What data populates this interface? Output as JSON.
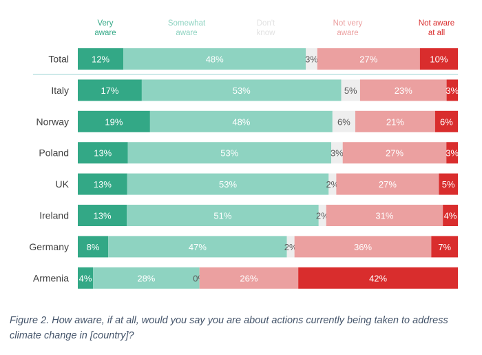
{
  "chart_data": {
    "type": "bar",
    "orientation": "horizontal",
    "stacked": true,
    "percent": true,
    "legend_position": "top",
    "categories": [
      "Total",
      "Italy",
      "Norway",
      "Poland",
      "UK",
      "Ireland",
      "Germany",
      "Armenia"
    ],
    "series": [
      {
        "name": "Very aware",
        "name_lines": [
          "Very",
          "aware"
        ],
        "color": "#33a886",
        "label_color": "#ffffff",
        "values": [
          12,
          17,
          19,
          13,
          13,
          13,
          8,
          4
        ]
      },
      {
        "name": "Somewhat aware",
        "name_lines": [
          "Somewhat",
          "aware"
        ],
        "color": "#8ed3c1",
        "label_color": "#ffffff",
        "values": [
          48,
          53,
          48,
          53,
          53,
          51,
          47,
          28
        ]
      },
      {
        "name": "Don't know",
        "name_lines": [
          "Don't",
          "know"
        ],
        "color": "#eeeeee",
        "label_color": "#595959",
        "legend_color": "#e2e2e2",
        "values": [
          3,
          5,
          6,
          3,
          2,
          2,
          2,
          0
        ]
      },
      {
        "name": "Not very aware",
        "name_lines": [
          "Not very",
          "aware"
        ],
        "color": "#eba0a0",
        "label_color": "#ffffff",
        "values": [
          27,
          23,
          21,
          27,
          27,
          31,
          36,
          26
        ]
      },
      {
        "name": "Not aware at all",
        "name_lines": [
          "Not aware",
          "at all"
        ],
        "color": "#d92d2d",
        "label_color": "#ffffff",
        "values": [
          10,
          3,
          6,
          3,
          5,
          4,
          7,
          42
        ]
      }
    ],
    "separator_after": "Total",
    "separator_color": "#9dd6d6"
  },
  "caption": "Figure 2. How aware, if at all, would you say you are about actions currently being taken to address climate change in [country]?"
}
